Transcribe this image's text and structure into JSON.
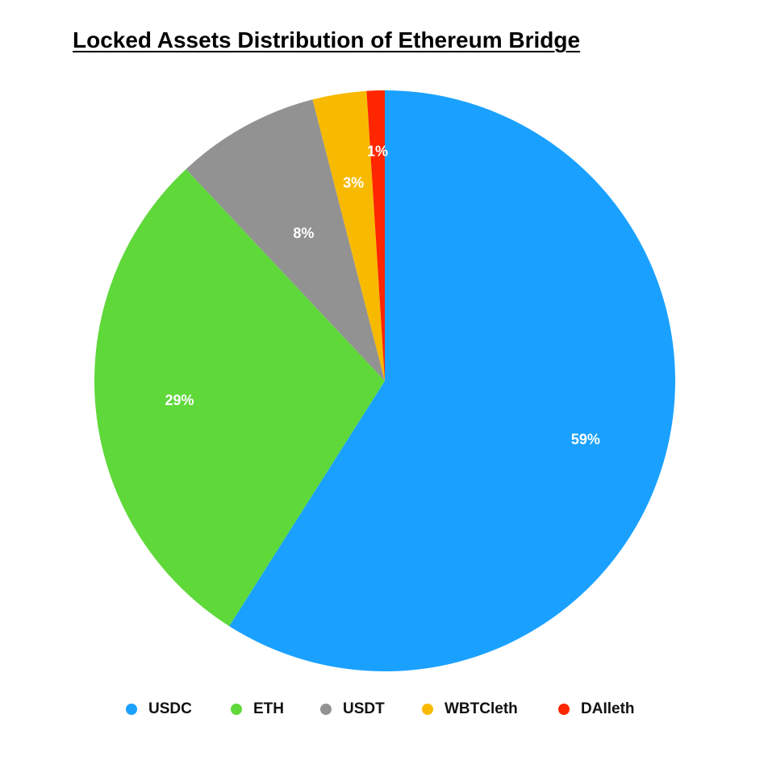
{
  "chart_data": {
    "type": "pie",
    "title": "Locked Assets Distribution of Ethereum Bridge",
    "legend_position": "bottom",
    "slices": [
      {
        "name": "USDC",
        "value": 59,
        "label": "59%",
        "color": "#1aa1ff"
      },
      {
        "name": "ETH",
        "value": 29,
        "label": "29%",
        "color": "#5fd83a"
      },
      {
        "name": "USDT",
        "value": 8,
        "label": "8%",
        "color": "#929292"
      },
      {
        "name": "WBTCleth",
        "value": 3,
        "label": "3%",
        "color": "#f8ba00"
      },
      {
        "name": "DAIleth",
        "value": 1,
        "label": "1%",
        "color": "#ff2600"
      }
    ]
  }
}
